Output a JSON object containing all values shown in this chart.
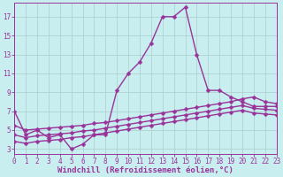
{
  "xlabel": "Windchill (Refroidissement éolien,°C)",
  "bg_color": "#c8eef0",
  "grid_color": "#aacccc",
  "line_color": "#993399",
  "x_ticks": [
    0,
    1,
    2,
    3,
    4,
    5,
    6,
    7,
    8,
    9,
    10,
    11,
    12,
    13,
    14,
    15,
    16,
    17,
    18,
    19,
    20,
    21,
    22,
    23
  ],
  "y_ticks": [
    3,
    5,
    7,
    9,
    11,
    13,
    15,
    17
  ],
  "xlim": [
    0,
    23
  ],
  "ylim": [
    2.5,
    18.5
  ],
  "line1_x": [
    0,
    1,
    2,
    3,
    4,
    5,
    6,
    7,
    8,
    9,
    10,
    11,
    12,
    13,
    14,
    15,
    16,
    17,
    18,
    19,
    20,
    21,
    22,
    23
  ],
  "line1_y": [
    7.0,
    4.5,
    5.0,
    4.2,
    4.5,
    3.0,
    3.5,
    4.5,
    4.5,
    9.2,
    11.0,
    12.2,
    14.2,
    17.0,
    17.0,
    18.0,
    13.0,
    9.2,
    9.2,
    8.5,
    8.0,
    7.5,
    7.5,
    7.5
  ],
  "line2_x": [
    0,
    1,
    2,
    3,
    4,
    5,
    6,
    7,
    8,
    9,
    10,
    11,
    12,
    13,
    14,
    15,
    16,
    17,
    18,
    19,
    20,
    21,
    22,
    23
  ],
  "line2_y": [
    5.5,
    5.0,
    5.1,
    5.2,
    5.3,
    5.4,
    5.5,
    5.7,
    5.8,
    6.0,
    6.2,
    6.4,
    6.6,
    6.8,
    7.0,
    7.2,
    7.4,
    7.6,
    7.8,
    8.0,
    8.3,
    8.5,
    8.0,
    7.8
  ],
  "line3_x": [
    0,
    1,
    2,
    3,
    4,
    5,
    6,
    7,
    8,
    9,
    10,
    11,
    12,
    13,
    14,
    15,
    16,
    17,
    18,
    19,
    20,
    21,
    22,
    23
  ],
  "line3_y": [
    4.5,
    4.2,
    4.4,
    4.5,
    4.6,
    4.7,
    4.9,
    5.0,
    5.2,
    5.4,
    5.6,
    5.8,
    6.0,
    6.2,
    6.4,
    6.6,
    6.8,
    7.0,
    7.2,
    7.4,
    7.6,
    7.3,
    7.2,
    7.1
  ],
  "line4_x": [
    0,
    1,
    2,
    3,
    4,
    5,
    6,
    7,
    8,
    9,
    10,
    11,
    12,
    13,
    14,
    15,
    16,
    17,
    18,
    19,
    20,
    21,
    22,
    23
  ],
  "line4_y": [
    3.8,
    3.6,
    3.8,
    3.9,
    4.0,
    4.2,
    4.3,
    4.5,
    4.7,
    4.9,
    5.1,
    5.3,
    5.5,
    5.7,
    5.9,
    6.1,
    6.3,
    6.5,
    6.7,
    6.9,
    7.1,
    6.8,
    6.7,
    6.6
  ],
  "marker": "D",
  "marker_size": 2.5,
  "line_width": 1.0,
  "tick_fontsize": 5.5,
  "xlabel_fontsize": 6.5
}
